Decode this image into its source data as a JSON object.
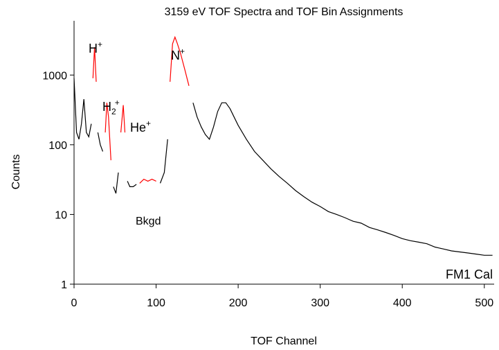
{
  "chart_data": {
    "type": "line",
    "title": "3159 eV TOF Spectra and TOF Bin Assignments",
    "xlabel": "TOF Channel",
    "ylabel": "Counts",
    "log_y": true,
    "xlim": [
      0,
      512
    ],
    "xticks": [
      0,
      100,
      200,
      300,
      400,
      500
    ],
    "ylim": [
      1,
      6000
    ],
    "yticks": [
      1,
      10,
      100,
      1000
    ],
    "x": [
      0,
      3,
      6,
      9,
      12,
      15,
      18,
      21,
      23,
      25,
      27,
      29,
      32,
      35,
      38,
      40,
      42,
      45,
      48,
      51,
      54,
      57,
      60,
      62,
      65,
      68,
      72,
      76,
      80,
      85,
      90,
      95,
      100,
      105,
      110,
      114,
      117,
      120,
      123,
      126,
      130,
      135,
      140,
      145,
      150,
      155,
      160,
      165,
      170,
      175,
      180,
      185,
      190,
      195,
      200,
      210,
      220,
      230,
      240,
      250,
      260,
      270,
      280,
      290,
      300,
      310,
      320,
      330,
      340,
      350,
      360,
      370,
      380,
      390,
      400,
      410,
      420,
      430,
      440,
      450,
      460,
      470,
      480,
      490,
      500,
      510
    ],
    "series": [
      {
        "color": "#000000",
        "values": [
          900,
          150,
          120,
          200,
          450,
          150,
          130,
          200,
          null,
          null,
          null,
          150,
          100,
          80,
          null,
          null,
          null,
          null,
          25,
          20,
          40,
          null,
          null,
          null,
          30,
          25,
          25,
          27,
          null,
          null,
          null,
          null,
          null,
          28,
          40,
          120,
          null,
          null,
          null,
          null,
          null,
          null,
          null,
          400,
          250,
          180,
          140,
          120,
          180,
          300,
          400,
          400,
          330,
          250,
          190,
          120,
          80,
          60,
          45,
          35,
          28,
          22,
          18,
          15,
          13,
          11,
          10,
          9,
          8,
          7.5,
          6.5,
          6,
          5.5,
          5,
          4.5,
          4.2,
          4,
          3.8,
          3.4,
          3.2,
          3,
          2.9,
          2.8,
          2.7,
          2.6,
          2.6
        ]
      },
      {
        "color": "#ff0000",
        "values": [
          null,
          null,
          null,
          null,
          null,
          null,
          null,
          null,
          900,
          2500,
          800,
          null,
          null,
          null,
          150,
          400,
          250,
          60,
          null,
          null,
          null,
          150,
          370,
          150,
          null,
          null,
          null,
          null,
          28,
          32,
          30,
          32,
          30,
          null,
          null,
          null,
          800,
          2800,
          3500,
          2800,
          2000,
          1200,
          700,
          null,
          null,
          null,
          null,
          null,
          null,
          null,
          null,
          null,
          null,
          null,
          null,
          null,
          null,
          null,
          null,
          null,
          null,
          null,
          null,
          null,
          null,
          null,
          null,
          null,
          null,
          null,
          null,
          null,
          null,
          null,
          null,
          null,
          null,
          null,
          null,
          null,
          null,
          null,
          null,
          null,
          null,
          null
        ]
      }
    ],
    "annotations": [
      {
        "label": "H",
        "sup": "+"
      },
      {
        "label": "H",
        "sub": "2",
        "sup": "+"
      },
      {
        "label": "He",
        "sup": "+"
      },
      {
        "label": "N",
        "sup": "+"
      },
      {
        "label": "Bkgd"
      },
      {
        "label": "FM1 Cal"
      }
    ]
  }
}
